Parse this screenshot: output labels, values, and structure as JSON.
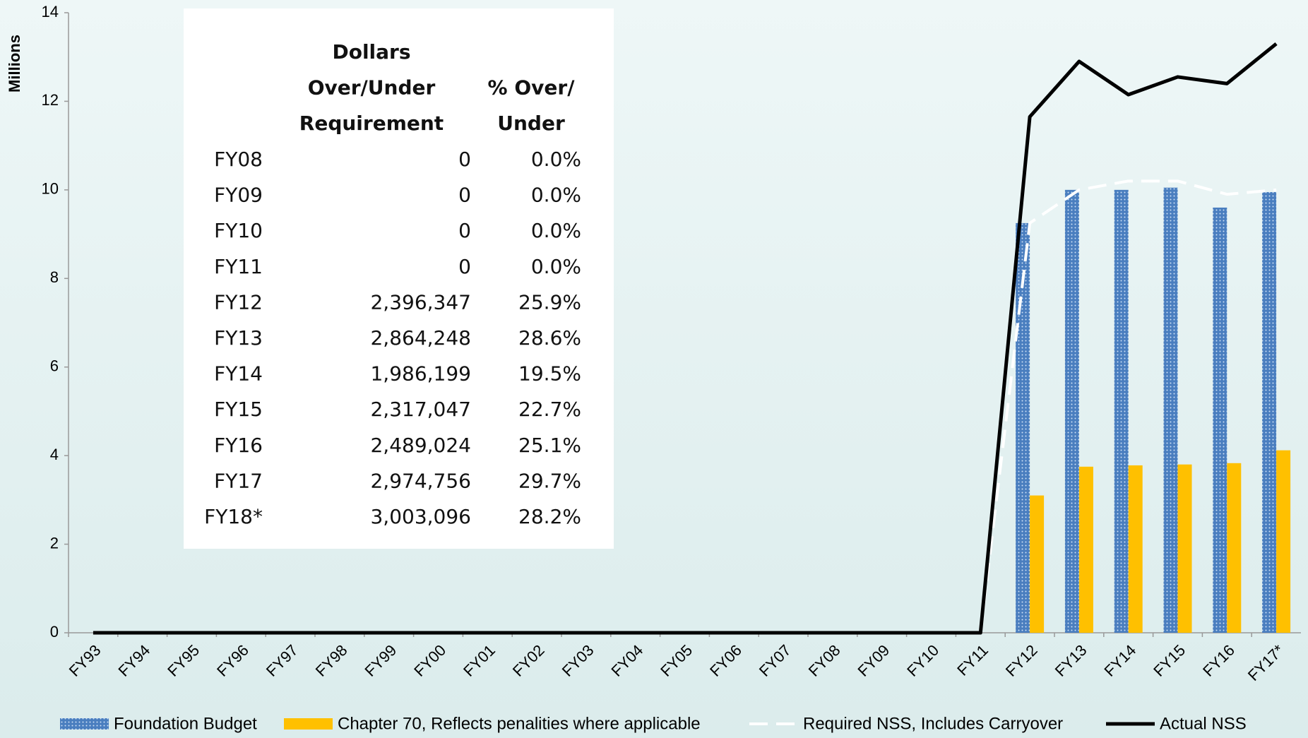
{
  "chart_data": {
    "type": "bar",
    "y_axis_label": "Millions",
    "categories": [
      "FY93",
      "FY94",
      "FY95",
      "FY96",
      "FY97",
      "FY98",
      "FY99",
      "FY00",
      "FY01",
      "FY02",
      "FY03",
      "FY04",
      "FY05",
      "FY06",
      "FY07",
      "FY08",
      "FY09",
      "FY10",
      "FY11",
      "FY12",
      "FY13",
      "FY14",
      "FY15",
      "FY16",
      "FY17*"
    ],
    "series": [
      {
        "name": "Foundation Budget",
        "type": "bar",
        "color": "#4a7ebf",
        "values": [
          null,
          null,
          null,
          null,
          null,
          null,
          null,
          null,
          null,
          null,
          null,
          null,
          null,
          null,
          null,
          null,
          null,
          null,
          null,
          9.25,
          10.0,
          10.0,
          10.05,
          9.6,
          9.95
        ]
      },
      {
        "name": "Chapter 70, Reflects penalities where applicable",
        "type": "bar",
        "color": "#ffc000",
        "values": [
          null,
          null,
          null,
          null,
          null,
          null,
          null,
          null,
          null,
          null,
          null,
          null,
          null,
          null,
          null,
          null,
          null,
          null,
          null,
          3.1,
          3.75,
          3.78,
          3.8,
          3.83,
          4.12
        ]
      },
      {
        "name": "Required NSS, Includes Carryover",
        "type": "line",
        "line_style": "dashed",
        "color": "#ffffff",
        "values": [
          0,
          0,
          0,
          0,
          0,
          0,
          0,
          0,
          0,
          0,
          0,
          0,
          0,
          0,
          0,
          0,
          0,
          0,
          0,
          9.25,
          10.0,
          10.2,
          10.2,
          9.9,
          10.0
        ]
      },
      {
        "name": "Actual NSS",
        "type": "line",
        "line_style": "solid",
        "color": "#000000",
        "values": [
          0,
          0,
          0,
          0,
          0,
          0,
          0,
          0,
          0,
          0,
          0,
          0,
          0,
          0,
          0,
          0,
          0,
          0,
          0,
          11.65,
          12.9,
          12.15,
          12.55,
          12.4,
          13.3
        ]
      }
    ],
    "ylim": [
      0,
      14
    ],
    "yticks": [
      0,
      2,
      4,
      6,
      8,
      10,
      12,
      14
    ],
    "grid": false,
    "legend": "bottom"
  },
  "table": {
    "header": [
      [
        "Dollars",
        "Over/Under",
        "Requirement"
      ],
      [
        "% Over/",
        "Under"
      ]
    ],
    "rows": [
      [
        "FY08",
        "0",
        "0.0%"
      ],
      [
        "FY09",
        "0",
        "0.0%"
      ],
      [
        "FY10",
        "0",
        "0.0%"
      ],
      [
        "FY11",
        "0",
        "0.0%"
      ],
      [
        "FY12",
        "2,396,347",
        "25.9%"
      ],
      [
        "FY13",
        "2,864,248",
        "28.6%"
      ],
      [
        "FY14",
        "1,986,199",
        "19.5%"
      ],
      [
        "FY15",
        "2,317,047",
        "22.7%"
      ],
      [
        "FY16",
        "2,489,024",
        "25.1%"
      ],
      [
        "FY17",
        "2,974,756",
        "29.7%"
      ],
      [
        "FY18*",
        "3,003,096",
        "28.2%"
      ]
    ]
  }
}
